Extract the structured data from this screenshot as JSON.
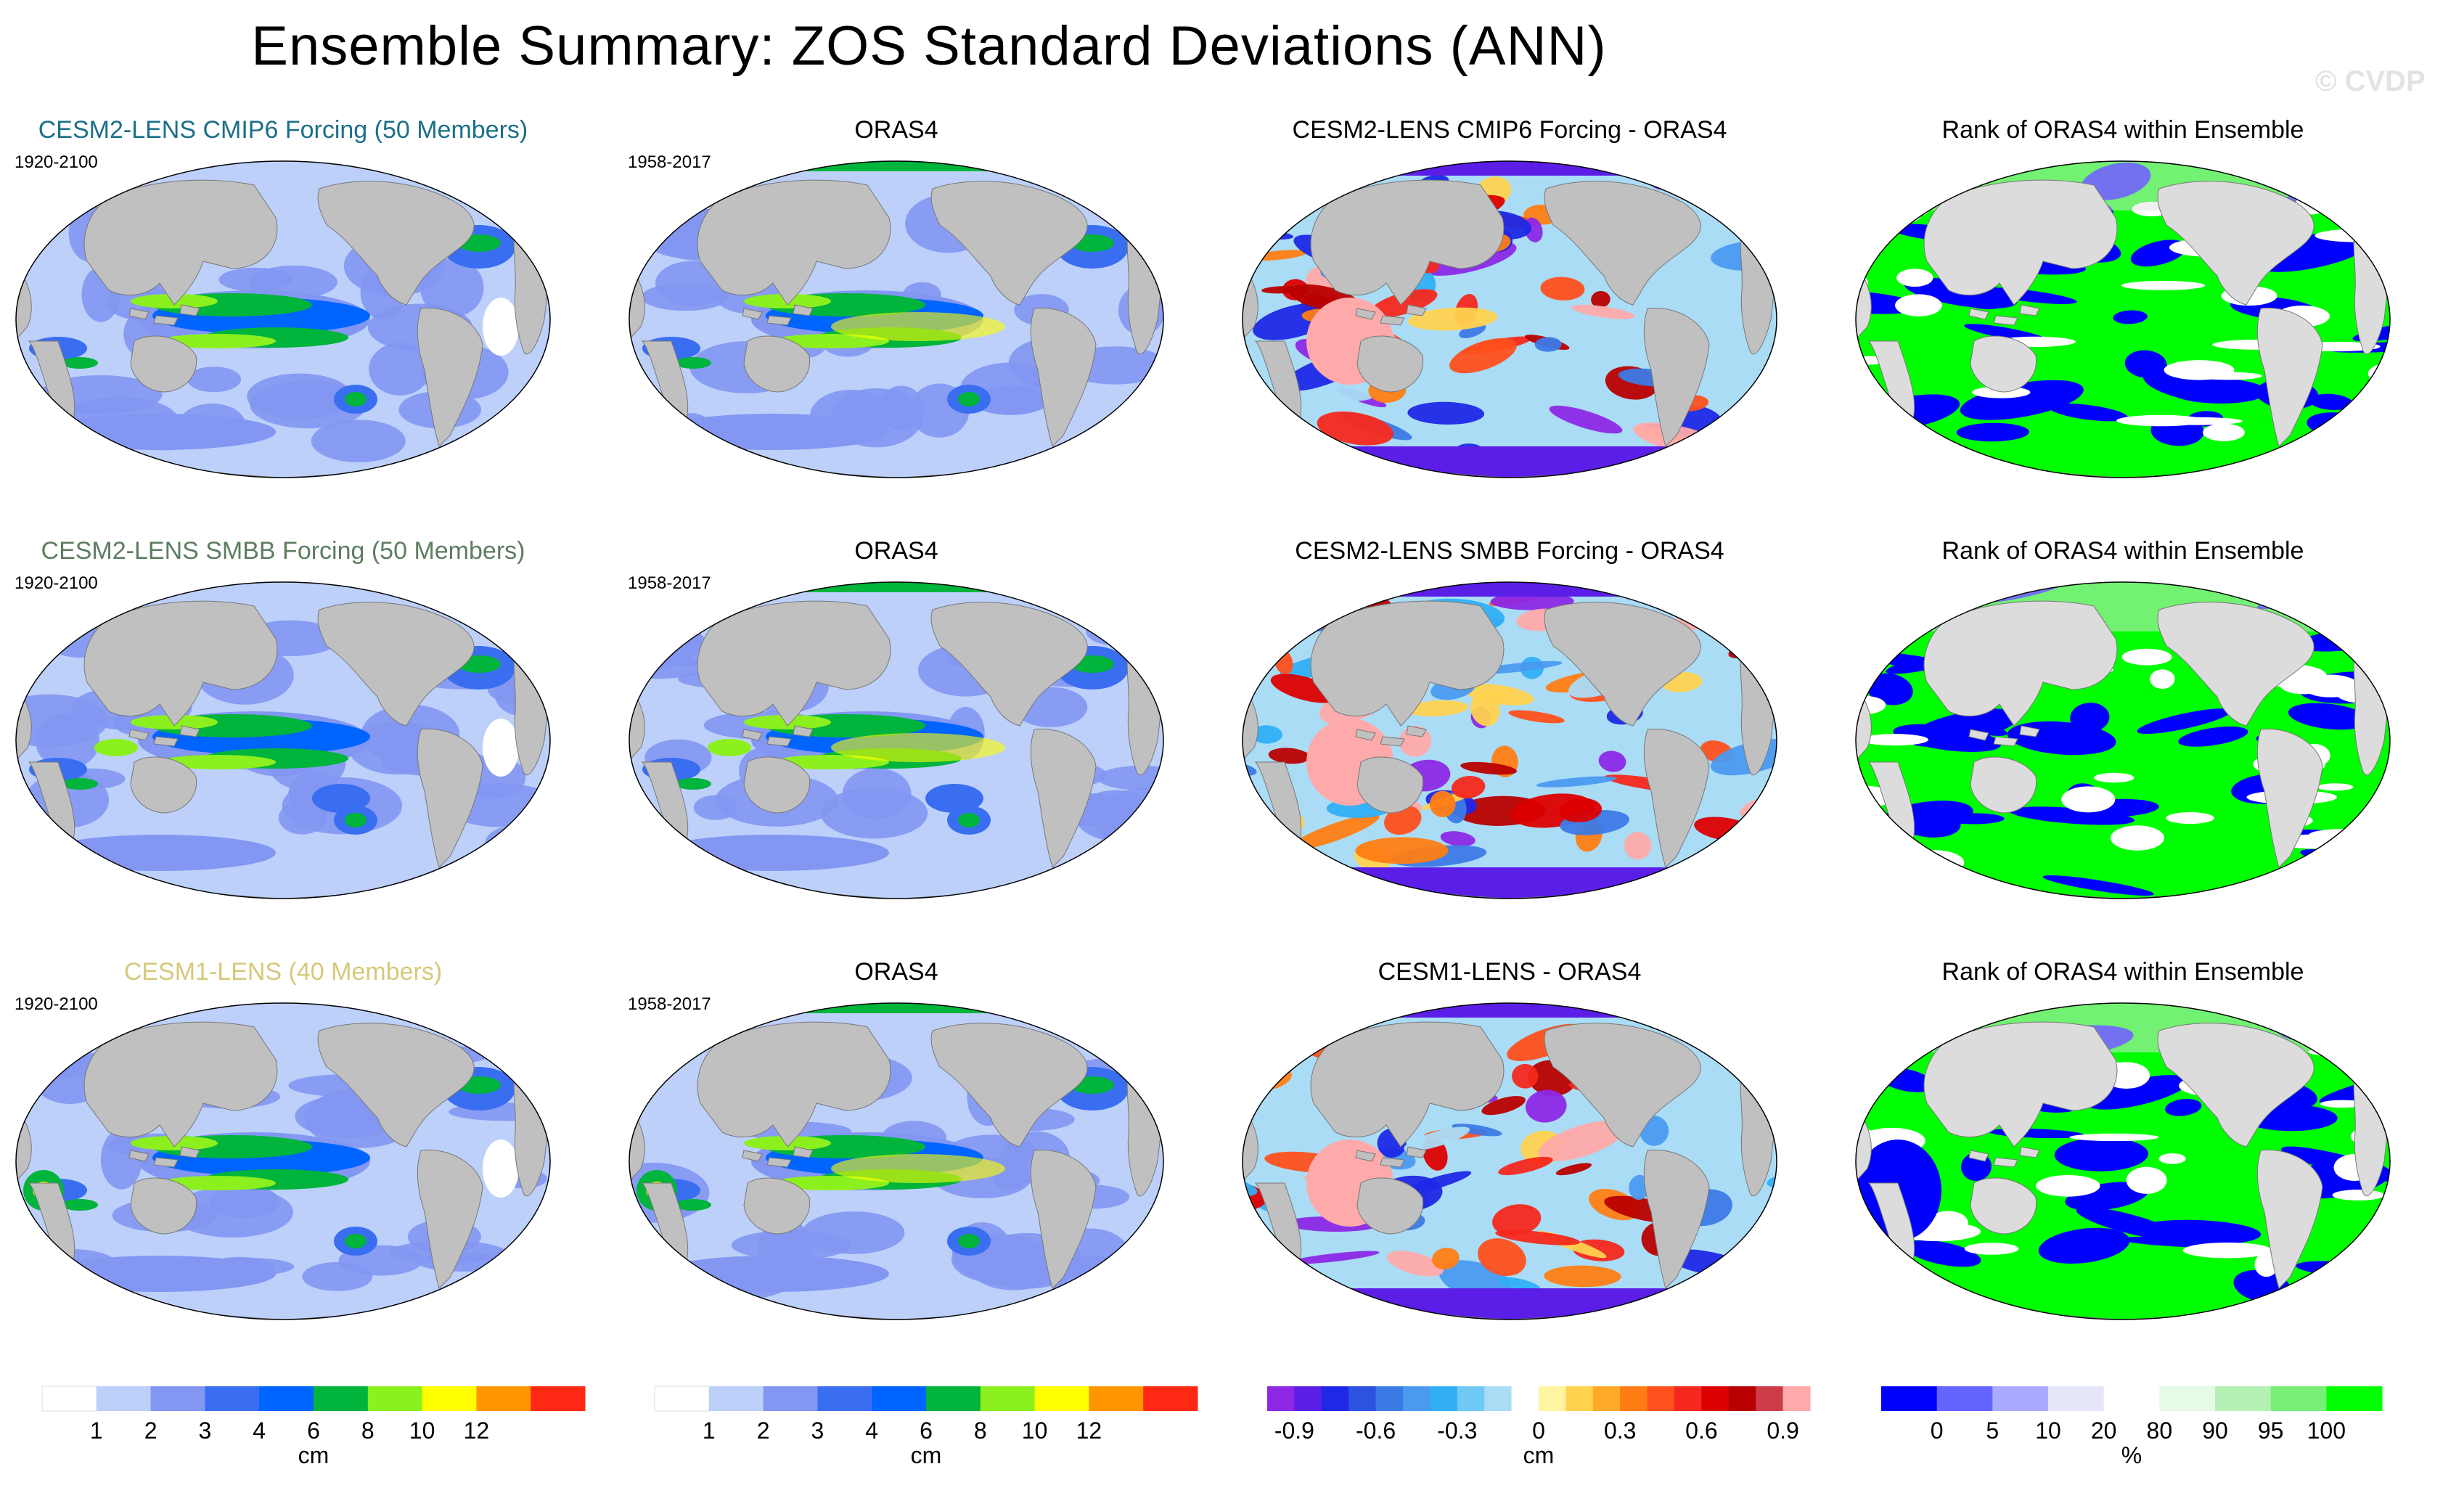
{
  "title": "Ensemble Summary: ZOS Standard Deviations (ANN)",
  "watermark": "© CVDP",
  "colors": {
    "land": "#c0c0c0",
    "ocean_default": "#bcd0fa",
    "ensemble_title_colors": [
      "#1c6f8a",
      "#5d7d60",
      "#d6c87a"
    ]
  },
  "rows": [
    {
      "ensemble": {
        "title": "CESM2-LENS CMIP6 Forcing (50 Members)",
        "period": "1920-2100"
      },
      "observation": {
        "title": "ORAS4",
        "period": "1958-2017"
      },
      "difference": {
        "title": "CESM2-LENS CMIP6 Forcing - ORAS4"
      },
      "rank": {
        "title": "Rank of ORAS4 within Ensemble"
      }
    },
    {
      "ensemble": {
        "title": "CESM2-LENS SMBB Forcing (50 Members)",
        "period": "1920-2100"
      },
      "observation": {
        "title": "ORAS4",
        "period": "1958-2017"
      },
      "difference": {
        "title": "CESM2-LENS SMBB Forcing - ORAS4"
      },
      "rank": {
        "title": "Rank of ORAS4 within Ensemble"
      }
    },
    {
      "ensemble": {
        "title": "CESM1-LENS (40 Members)",
        "period": "1920-2100"
      },
      "observation": {
        "title": "ORAS4",
        "period": "1958-2017"
      },
      "difference": {
        "title": "CESM1-LENS - ORAS4"
      },
      "rank": {
        "title": "Rank of ORAS4 within Ensemble"
      }
    }
  ],
  "chart_data": [
    {
      "type": "heatmap",
      "name": "std-dev-colorbar-ensemble",
      "unit": "cm",
      "tick_labels": [
        "1",
        "2",
        "3",
        "4",
        "6",
        "8",
        "10",
        "12"
      ],
      "colors": [
        "#ffffff",
        "#bcd0fa",
        "#8296f2",
        "#3a6ef0",
        "#0064ff",
        "#00b43c",
        "#8cf01e",
        "#ffff00",
        "#ff9600",
        "#ff2814"
      ]
    },
    {
      "type": "heatmap",
      "name": "std-dev-colorbar-observation",
      "unit": "cm",
      "tick_labels": [
        "1",
        "2",
        "3",
        "4",
        "6",
        "8",
        "10",
        "12"
      ],
      "colors": [
        "#ffffff",
        "#bcd0fa",
        "#8296f2",
        "#3a6ef0",
        "#0064ff",
        "#00b43c",
        "#8cf01e",
        "#ffff00",
        "#ff9600",
        "#ff2814"
      ]
    },
    {
      "type": "heatmap",
      "name": "difference-colorbar",
      "unit": "cm",
      "tick_labels": [
        "-0.9",
        "-0.6",
        "-0.3",
        "0",
        "0.3",
        "0.6",
        "0.9"
      ],
      "tick_positions": [
        1,
        4,
        7,
        10,
        13,
        16,
        19
      ],
      "colors": [
        "#8c28e6",
        "#5a1ee6",
        "#1e28e6",
        "#2c52e0",
        "#3c7ae6",
        "#4a9af0",
        "#32aff5",
        "#6fcaf5",
        "#aadcf5",
        "#ffffff",
        "#fff5a0",
        "#ffd250",
        "#ffaa28",
        "#ff7d14",
        "#ff501e",
        "#f5281e",
        "#dc0000",
        "#b90000",
        "#cd3c46",
        "#ffaaaa"
      ]
    },
    {
      "type": "heatmap",
      "name": "rank-colorbar",
      "unit": "%",
      "tick_labels": [
        "0",
        "5",
        "10",
        "20",
        "80",
        "90",
        "95",
        "100"
      ],
      "tick_positions": [
        1,
        2,
        3,
        4,
        5,
        6,
        7,
        8
      ],
      "colors": [
        "#0000ff",
        "#6464ff",
        "#aaaaff",
        "#e6e6fa",
        "#ffffff",
        "#e6fae6",
        "#b4f0b4",
        "#78f078",
        "#00ff00"
      ]
    }
  ]
}
